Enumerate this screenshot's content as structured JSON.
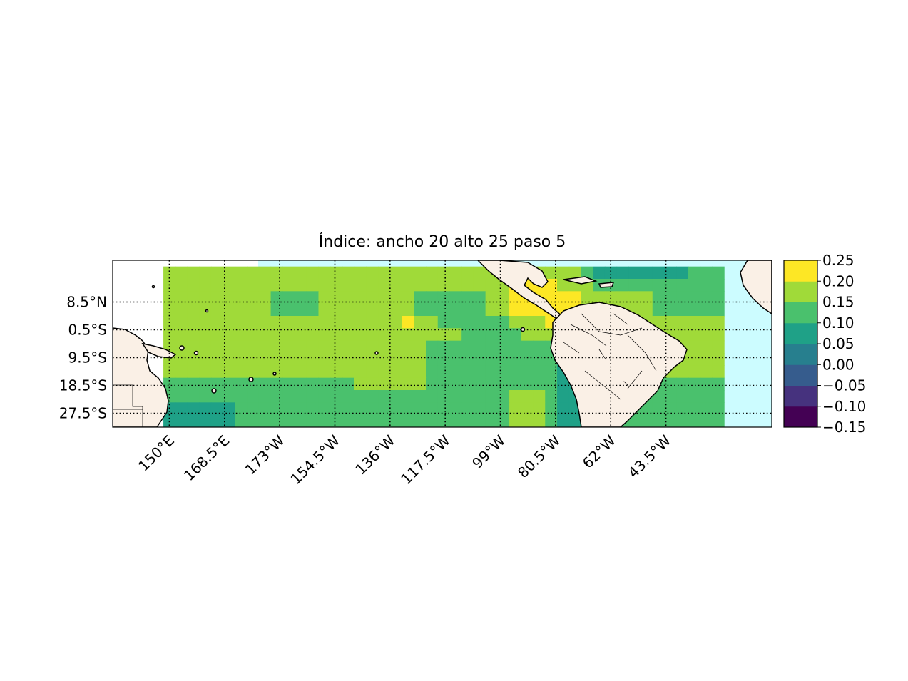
{
  "title": "Índice: ancho 20 alto 25 paso 5",
  "map": {
    "ocean_color": "#ccfcff",
    "land_color": "#faf0e6",
    "coast_color": "#000000",
    "grid_style": "dotted"
  },
  "chart_data": {
    "type": "heatmap",
    "title": "Índice: ancho 20 alto 25 paso 5",
    "xlabel": "",
    "ylabel": "",
    "lon_ticks": [
      {
        "value": 150,
        "label": "150°E"
      },
      {
        "value": 168.5,
        "label": "168.5°E"
      },
      {
        "value": 187,
        "label": "173°W"
      },
      {
        "value": 205.5,
        "label": "154.5°W"
      },
      {
        "value": 224,
        "label": "136°W"
      },
      {
        "value": 242.5,
        "label": "117.5°W"
      },
      {
        "value": 261,
        "label": "99°W"
      },
      {
        "value": 279.5,
        "label": "80.5°W"
      },
      {
        "value": 298,
        "label": "62°W"
      },
      {
        "value": 316.5,
        "label": "43.5°W"
      }
    ],
    "lat_ticks": [
      {
        "value": 8.5,
        "label": "8.5°N"
      },
      {
        "value": -0.5,
        "label": "0.5°S"
      },
      {
        "value": -9.5,
        "label": "9.5°S"
      },
      {
        "value": -18.5,
        "label": "18.5°S"
      },
      {
        "value": -27.5,
        "label": "27.5°S"
      }
    ],
    "extent": {
      "lon": [
        131,
        352
      ],
      "lat": [
        -32,
        22
      ]
    },
    "field_lons": [
      150,
      154,
      158,
      162,
      166,
      170,
      174,
      178,
      182,
      186,
      190,
      194,
      198,
      202,
      206,
      210,
      214,
      218,
      222,
      226,
      230,
      234,
      238,
      242,
      246,
      250,
      254,
      258,
      262,
      266,
      270,
      274,
      278,
      282,
      286,
      290,
      294,
      298,
      302,
      306,
      310,
      314,
      318,
      322,
      326,
      330,
      334
    ],
    "field_lats": [
      18,
      14,
      10,
      6,
      2,
      -2,
      -6,
      -10,
      -14,
      -18,
      -22,
      -26,
      -30
    ],
    "field_values": [
      [
        0.15,
        0.15,
        0.15,
        0.15,
        0.15,
        0.15,
        0.15,
        0.15,
        0.15,
        0.15,
        0.15,
        0.15,
        0.15,
        0.15,
        0.15,
        0.15,
        0.15,
        0.15,
        0.15,
        0.15,
        0.15,
        0.15,
        0.15,
        0.15,
        0.15,
        0.15,
        0.15,
        0.15,
        0.15,
        0.15,
        0.15,
        0.15,
        0.15,
        0.15,
        0.15,
        0.1,
        0.05,
        0.05,
        0.05,
        0.05,
        0.05,
        0.05,
        0.05,
        0.05,
        0.1,
        0.1,
        0.1
      ],
      [
        0.15,
        0.15,
        0.15,
        0.15,
        0.15,
        0.15,
        0.15,
        0.15,
        0.15,
        0.15,
        0.15,
        0.15,
        0.15,
        0.15,
        0.15,
        0.15,
        0.15,
        0.15,
        0.15,
        0.15,
        0.15,
        0.15,
        0.15,
        0.15,
        0.15,
        0.15,
        0.15,
        0.15,
        0.15,
        0.2,
        0.2,
        0.2,
        0.2,
        0.15,
        0.15,
        0.15,
        0.1,
        0.1,
        0.1,
        0.1,
        0.1,
        0.1,
        0.1,
        0.1,
        0.1,
        0.1,
        0.1
      ],
      [
        0.15,
        0.15,
        0.15,
        0.15,
        0.15,
        0.15,
        0.15,
        0.15,
        0.15,
        0.1,
        0.1,
        0.1,
        0.1,
        0.15,
        0.15,
        0.15,
        0.15,
        0.15,
        0.15,
        0.15,
        0.15,
        0.1,
        0.1,
        0.1,
        0.1,
        0.1,
        0.1,
        0.15,
        0.15,
        0.2,
        0.2,
        0.2,
        0.2,
        0.2,
        0.2,
        0.15,
        0.15,
        0.15,
        0.15,
        0.15,
        0.15,
        0.1,
        0.1,
        0.1,
        0.1,
        0.1,
        0.1
      ],
      [
        0.15,
        0.15,
        0.15,
        0.15,
        0.15,
        0.15,
        0.15,
        0.15,
        0.15,
        0.1,
        0.1,
        0.1,
        0.1,
        0.15,
        0.15,
        0.15,
        0.15,
        0.15,
        0.15,
        0.15,
        0.15,
        0.1,
        0.1,
        0.1,
        0.1,
        0.1,
        0.1,
        0.15,
        0.15,
        0.2,
        0.2,
        0.2,
        0.2,
        0.2,
        0.2,
        0.15,
        0.15,
        0.15,
        0.15,
        0.15,
        0.15,
        0.1,
        0.1,
        0.1,
        0.1,
        0.1,
        0.1
      ],
      [
        0.15,
        0.15,
        0.15,
        0.15,
        0.15,
        0.15,
        0.15,
        0.15,
        0.15,
        0.15,
        0.15,
        0.15,
        0.15,
        0.15,
        0.15,
        0.15,
        0.15,
        0.15,
        0.15,
        0.15,
        0.2,
        0.15,
        0.15,
        0.1,
        0.1,
        0.1,
        0.1,
        0.1,
        0.1,
        0.15,
        0.15,
        0.15,
        0.2,
        0.2,
        0.2,
        0.15,
        0.15,
        0.15,
        0.15,
        0.15,
        0.15,
        0.15,
        0.15,
        0.15,
        0.15,
        0.15,
        0.15
      ],
      [
        0.15,
        0.15,
        0.15,
        0.15,
        0.15,
        0.15,
        0.15,
        0.15,
        0.15,
        0.15,
        0.15,
        0.15,
        0.15,
        0.15,
        0.15,
        0.15,
        0.15,
        0.15,
        0.15,
        0.15,
        0.15,
        0.15,
        0.15,
        0.15,
        0.15,
        0.1,
        0.1,
        0.1,
        0.1,
        0.1,
        0.15,
        0.15,
        0.15,
        0.1,
        0.1,
        0.1,
        0.1,
        0.1,
        0.15,
        0.15,
        0.15,
        0.15,
        0.15,
        0.15,
        0.15,
        0.15,
        0.15
      ],
      [
        0.15,
        0.15,
        0.15,
        0.15,
        0.15,
        0.15,
        0.15,
        0.15,
        0.15,
        0.15,
        0.15,
        0.15,
        0.15,
        0.15,
        0.15,
        0.15,
        0.15,
        0.15,
        0.15,
        0.15,
        0.15,
        0.15,
        0.1,
        0.1,
        0.1,
        0.1,
        0.1,
        0.1,
        0.1,
        0.1,
        0.1,
        0.1,
        0.1,
        0.1,
        0.05,
        0.05,
        0.1,
        0.1,
        0.1,
        0.15,
        0.15,
        0.15,
        0.15,
        0.15,
        0.15,
        0.15,
        0.15
      ],
      [
        0.15,
        0.15,
        0.15,
        0.15,
        0.15,
        0.15,
        0.15,
        0.15,
        0.15,
        0.15,
        0.15,
        0.15,
        0.15,
        0.15,
        0.15,
        0.15,
        0.15,
        0.15,
        0.15,
        0.15,
        0.15,
        0.15,
        0.1,
        0.1,
        0.1,
        0.1,
        0.1,
        0.1,
        0.1,
        0.1,
        0.1,
        0.1,
        0.1,
        0.05,
        0.05,
        0.0,
        -0.05,
        0.05,
        0.1,
        0.1,
        0.1,
        0.15,
        0.15,
        0.15,
        0.15,
        0.15,
        0.15
      ],
      [
        0.15,
        0.15,
        0.15,
        0.15,
        0.15,
        0.15,
        0.15,
        0.15,
        0.15,
        0.15,
        0.15,
        0.15,
        0.15,
        0.15,
        0.15,
        0.15,
        0.15,
        0.15,
        0.15,
        0.15,
        0.15,
        0.15,
        0.1,
        0.1,
        0.1,
        0.1,
        0.1,
        0.1,
        0.1,
        0.1,
        0.1,
        0.1,
        0.1,
        0.05,
        0.05,
        0.0,
        -0.05,
        0.05,
        0.1,
        0.1,
        0.1,
        0.15,
        0.15,
        0.15,
        0.15,
        0.15,
        0.15
      ],
      [
        0.1,
        0.1,
        0.1,
        0.1,
        0.1,
        0.1,
        0.1,
        0.1,
        0.1,
        0.1,
        0.1,
        0.1,
        0.1,
        0.1,
        0.1,
        0.1,
        0.15,
        0.15,
        0.15,
        0.15,
        0.15,
        0.15,
        0.1,
        0.1,
        0.1,
        0.1,
        0.1,
        0.1,
        0.1,
        0.1,
        0.1,
        0.1,
        0.1,
        0.05,
        0.05,
        0.0,
        0.0,
        0.05,
        0.1,
        0.1,
        0.1,
        0.1,
        0.1,
        0.1,
        0.1,
        0.1,
        0.1
      ],
      [
        0.1,
        0.1,
        0.1,
        0.1,
        0.1,
        0.1,
        0.1,
        0.1,
        0.1,
        0.1,
        0.1,
        0.1,
        0.1,
        0.1,
        0.1,
        0.1,
        0.1,
        0.1,
        0.1,
        0.1,
        0.1,
        0.1,
        0.1,
        0.1,
        0.1,
        0.1,
        0.1,
        0.1,
        0.1,
        0.15,
        0.15,
        0.15,
        0.1,
        0.05,
        0.05,
        0.0,
        0.0,
        0.05,
        0.1,
        0.1,
        0.1,
        0.1,
        0.1,
        0.1,
        0.1,
        0.1,
        0.1
      ],
      [
        0.05,
        0.05,
        0.05,
        0.05,
        0.05,
        0.05,
        0.1,
        0.1,
        0.1,
        0.1,
        0.1,
        0.1,
        0.1,
        0.1,
        0.1,
        0.1,
        0.1,
        0.1,
        0.1,
        0.1,
        0.1,
        0.1,
        0.1,
        0.1,
        0.1,
        0.1,
        0.1,
        0.1,
        0.1,
        0.15,
        0.15,
        0.15,
        0.1,
        0.05,
        0.05,
        0.0,
        0.0,
        0.05,
        0.1,
        0.1,
        0.1,
        0.1,
        0.1,
        0.1,
        0.1,
        0.1,
        0.1
      ],
      [
        0.05,
        0.05,
        0.05,
        0.05,
        0.05,
        0.05,
        0.1,
        0.1,
        0.1,
        0.1,
        0.1,
        0.1,
        0.1,
        0.1,
        0.1,
        0.1,
        0.1,
        0.1,
        0.1,
        0.1,
        0.1,
        0.1,
        0.1,
        0.1,
        0.1,
        0.1,
        0.1,
        0.1,
        0.1,
        0.15,
        0.15,
        0.15,
        0.1,
        0.05,
        0.05,
        0.0,
        0.0,
        0.05,
        0.1,
        0.1,
        0.1,
        0.1,
        0.1,
        0.1,
        0.1,
        0.1,
        0.1
      ]
    ],
    "colorbar": {
      "levels": [
        -0.15,
        -0.1,
        -0.05,
        0.0,
        0.05,
        0.1,
        0.15,
        0.2,
        0.25
      ],
      "labels": [
        "−0.15",
        "−0.10",
        "−0.05",
        "0.00",
        "0.05",
        "0.10",
        "0.15",
        "0.20",
        "0.25"
      ],
      "colors": [
        "#440154",
        "#46327e",
        "#365c8d",
        "#277f8e",
        "#1fa187",
        "#4ac16d",
        "#a0da39",
        "#fde725"
      ]
    }
  }
}
